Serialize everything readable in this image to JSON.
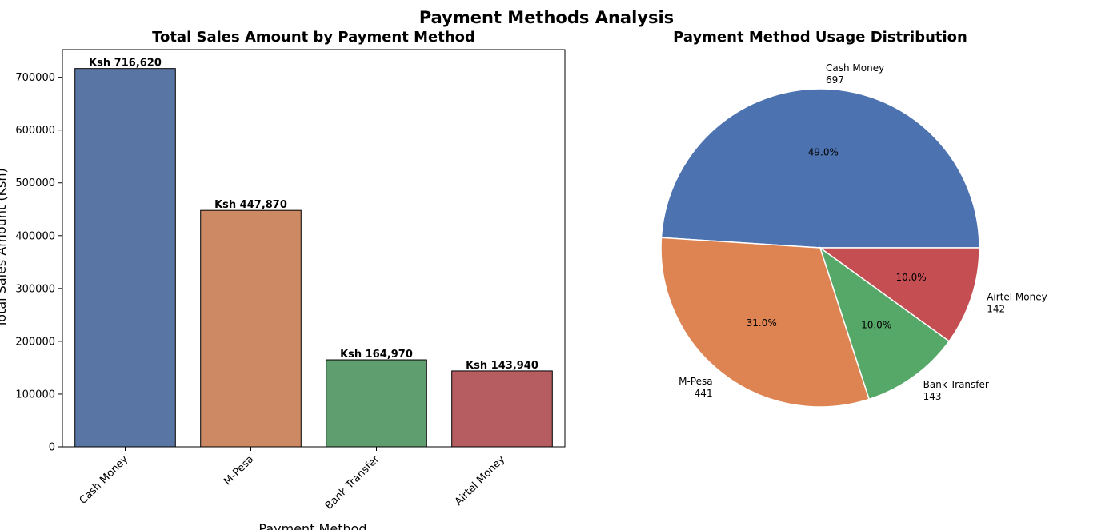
{
  "figure": {
    "title": "Payment Methods Analysis"
  },
  "chart_data": [
    {
      "type": "bar",
      "title": "Total Sales Amount by Payment Method",
      "xlabel": "Payment Method",
      "ylabel": "Total Sales Amount (Ksh)",
      "categories": [
        "Cash Money",
        "M-Pesa",
        "Bank Transfer",
        "Airtel Money"
      ],
      "values": [
        716620,
        447870,
        164970,
        143940
      ],
      "data_labels": [
        "Ksh 716,620",
        "Ksh 447,870",
        "Ksh 164,970",
        "Ksh 143,940"
      ],
      "colors": [
        "#5975a4",
        "#cc8963",
        "#5f9e6e",
        "#b55d60"
      ],
      "ylim": [
        0,
        752451
      ],
      "yticks": [
        0,
        100000,
        200000,
        300000,
        400000,
        500000,
        600000,
        700000
      ],
      "ytick_labels": [
        "0",
        "100000",
        "200000",
        "300000",
        "400000",
        "500000",
        "600000",
        "700000"
      ],
      "grid": false
    },
    {
      "type": "pie",
      "title": "Payment Method Usage Distribution",
      "labels": [
        "Cash Money",
        "M-Pesa",
        "Bank Transfer",
        "Airtel Money"
      ],
      "values": [
        697,
        441,
        143,
        142
      ],
      "percent_labels": [
        "49.0%",
        "31.0%",
        "10.0%",
        "10.0%"
      ],
      "colors": [
        "#4c72b0",
        "#dd8452",
        "#55a868",
        "#c44e52"
      ]
    }
  ]
}
